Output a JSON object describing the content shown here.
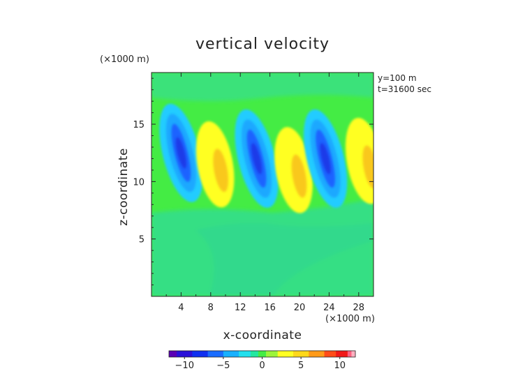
{
  "chart_data": {
    "type": "heatmap",
    "title": "vertical velocity",
    "xlabel": "x-coordinate",
    "ylabel": "z-coordinate",
    "x_unit": "(×1000 m)",
    "y_unit": "(×1000 m)",
    "annotations": [
      "y=100 m",
      "t=31600 sec"
    ],
    "xlim": [
      0,
      30
    ],
    "ylim": [
      0,
      19.5
    ],
    "x_ticks": [
      4,
      8,
      12,
      16,
      20,
      24,
      28
    ],
    "y_ticks": [
      5,
      10,
      15
    ],
    "x_tick_labels": [
      "4",
      "8",
      "12",
      "16",
      "20",
      "24",
      "28"
    ],
    "y_tick_labels": [
      "5",
      "10",
      "15"
    ],
    "colorbar": {
      "min": -12,
      "max": 12,
      "ticks": [
        -10,
        -5,
        0,
        5,
        10
      ],
      "tick_labels": [
        "−10",
        "−5",
        "0",
        "5",
        "10"
      ]
    },
    "background_value": 0,
    "cells": [
      {
        "sign": "negative",
        "x_center": 4.0,
        "z_center": 12.5,
        "peak": -9
      },
      {
        "sign": "positive",
        "x_center": 8.6,
        "z_center": 11.5,
        "peak": 4
      },
      {
        "sign": "negative",
        "x_center": 14.2,
        "z_center": 12.0,
        "peak": -9
      },
      {
        "sign": "positive",
        "x_center": 19.2,
        "z_center": 11.0,
        "peak": 4
      },
      {
        "sign": "negative",
        "x_center": 23.5,
        "z_center": 12.0,
        "peak": -10
      },
      {
        "sign": "positive",
        "x_center": 28.8,
        "z_center": 11.8,
        "peak": 5
      }
    ],
    "grid": false,
    "legend": "bottom colorbar"
  },
  "colors": {
    "field_zero": "#44ec44",
    "field_low": "#33e07a",
    "yellow": "#ffff22",
    "orange": "#f9c81a",
    "cyan": "#22ccff",
    "blue": "#1e64ff",
    "deep_blue": "#1a3ae8"
  }
}
